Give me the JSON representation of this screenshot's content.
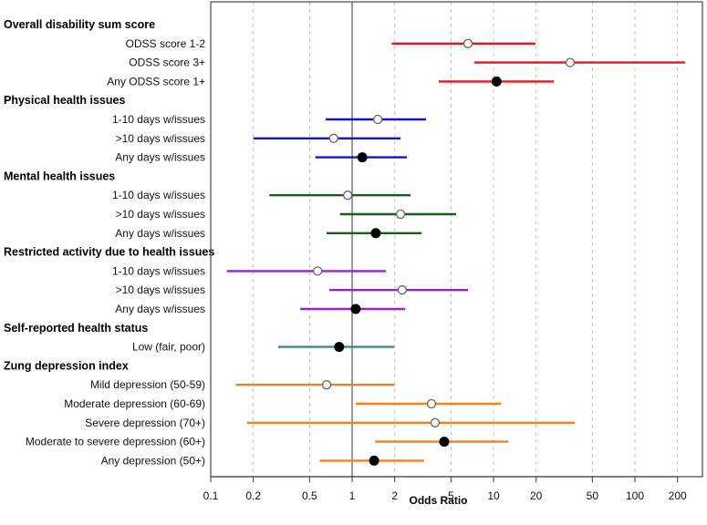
{
  "chart_data": {
    "type": "forest",
    "title": "",
    "xlabel": "Odds Ratio",
    "ylabel": "",
    "xscale": "log",
    "xlim": [
      0.1,
      285
    ],
    "xticks": [
      0.1,
      0.2,
      0.5,
      1,
      2,
      5,
      10,
      20,
      50,
      100,
      200
    ],
    "xtick_labels": [
      "0.1",
      "0.2",
      "0.5",
      "1",
      "2",
      "5",
      "10",
      "20",
      "50",
      "100",
      "200"
    ],
    "reference_line": 1,
    "grid": "vertical dashed at ticks",
    "legend": "none",
    "marker_legend": {
      "open": "subcategory estimate",
      "filled": "any/overall estimate"
    },
    "groups": [
      {
        "name": "Overall disability sum score",
        "color": "#e5161d",
        "rows": [
          {
            "label": "ODSS score 1-2",
            "or": 6.6,
            "lo": 1.9,
            "hi": 19.8,
            "marker": "open"
          },
          {
            "label": "ODSS score 3+",
            "or": 34.8,
            "lo": 7.3,
            "hi": 226,
            "marker": "open"
          },
          {
            "label": "Any ODSS score 1+",
            "or": 10.5,
            "lo": 4.1,
            "hi": 26.7,
            "marker": "filled"
          }
        ]
      },
      {
        "name": "Physical health issues",
        "color": "#1414d2",
        "rows": [
          {
            "label": "1-10 days w/issues",
            "or": 1.52,
            "lo": 0.65,
            "hi": 3.33,
            "marker": "open"
          },
          {
            "label": ">10 days w/issues",
            "or": 0.74,
            "lo": 0.2,
            "hi": 2.2,
            "marker": "open"
          },
          {
            "label": "Any days w/issues",
            "or": 1.18,
            "lo": 0.55,
            "hi": 2.44,
            "marker": "filled"
          }
        ]
      },
      {
        "name": "Mental health issues",
        "color": "#1b5e1b",
        "rows": [
          {
            "label": "1-10 days w/issues",
            "or": 0.93,
            "lo": 0.26,
            "hi": 2.59,
            "marker": "open"
          },
          {
            "label": ">10 days w/issues",
            "or": 2.2,
            "lo": 0.82,
            "hi": 5.44,
            "marker": "open"
          },
          {
            "label": "Any days w/issues",
            "or": 1.47,
            "lo": 0.66,
            "hi": 3.1,
            "marker": "filled"
          }
        ]
      },
      {
        "name": "Restricted activity due to health issues",
        "color": "#9b20d0",
        "rows": [
          {
            "label": "1-10 days w/issues",
            "or": 0.57,
            "lo": 0.13,
            "hi": 1.73,
            "marker": "open"
          },
          {
            "label": ">10 days w/issues",
            "or": 2.26,
            "lo": 0.69,
            "hi": 6.6,
            "marker": "open"
          },
          {
            "label": "Any days w/issues",
            "or": 1.06,
            "lo": 0.43,
            "hi": 2.37,
            "marker": "filled"
          }
        ]
      },
      {
        "name": "Self-reported health status",
        "color": "#3a8c8c",
        "rows": [
          {
            "label": "Low (fair, poor)",
            "or": 0.81,
            "lo": 0.3,
            "hi": 1.98,
            "marker": "filled"
          }
        ]
      },
      {
        "name": "Zung depression index",
        "color": "#f5801c",
        "rows": [
          {
            "label": "Mild depression (50-59)",
            "or": 0.66,
            "lo": 0.15,
            "hi": 2.0,
            "marker": "open"
          },
          {
            "label": "Moderate depression (60-69)",
            "or": 3.64,
            "lo": 1.06,
            "hi": 11.3,
            "marker": "open"
          },
          {
            "label": "Severe depression (70+)",
            "or": 3.86,
            "lo": 0.18,
            "hi": 37.5,
            "marker": "open"
          },
          {
            "label": "Moderate to severe depression (60+)",
            "or": 4.48,
            "lo": 1.45,
            "hi": 12.7,
            "marker": "filled"
          },
          {
            "label": "Any depression (50+)",
            "or": 1.43,
            "lo": 0.59,
            "hi": 3.23,
            "marker": "filled"
          }
        ]
      }
    ]
  }
}
